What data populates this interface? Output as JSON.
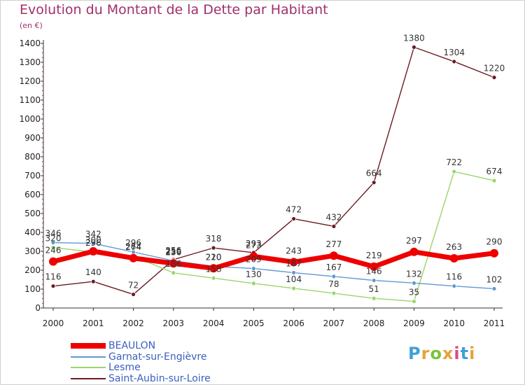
{
  "title": "Evolution du Montant de la Dette par Habitant",
  "unit_label": "(en €)",
  "logo": {
    "text": "Proxiti",
    "colors": [
      "#3fa0d8",
      "#e8a23a",
      "#7cc23c",
      "#e8a23a",
      "#d94a8a",
      "#3fa0d8",
      "#e8a23a"
    ]
  },
  "chart_data": {
    "type": "line",
    "x": [
      "2000",
      "2001",
      "2002",
      "2003",
      "2004",
      "2005",
      "2006",
      "2007",
      "2008",
      "2009",
      "2010",
      "2011"
    ],
    "ylim": [
      0,
      1400
    ],
    "yticks": [
      0,
      100,
      200,
      300,
      400,
      500,
      600,
      700,
      800,
      900,
      1000,
      1100,
      1200,
      1300,
      1400
    ],
    "grid": false,
    "legend_placement": "bottom-left",
    "series": [
      {
        "name": "Saint-Aubin-sur-Loire",
        "color": "#6b1a24",
        "values": [
          116,
          140,
          72,
          256,
          318,
          293,
          472,
          432,
          664,
          1380,
          1304,
          1220
        ]
      },
      {
        "name": "Lesme",
        "color": "#99d66a",
        "values": [
          320,
          296,
          274,
          186,
          158,
          130,
          104,
          78,
          51,
          35,
          722,
          674
        ]
      },
      {
        "name": "Garnat-sur-Engièvre",
        "color": "#5f9ad2",
        "values": [
          346,
          342,
          296,
          250,
          220,
          209,
          187,
          167,
          146,
          132,
          116,
          102
        ]
      },
      {
        "name": "BEAULON",
        "color": "#ee0000",
        "values": [
          246,
          300,
          264,
          236,
          210,
          273,
          243,
          277,
          219,
          297,
          263,
          290
        ]
      }
    ]
  },
  "legend": [
    {
      "name": "BEAULON",
      "color": "#ee0000"
    },
    {
      "name": "Garnat-sur-Engièvre",
      "color": "#5f9ad2"
    },
    {
      "name": "Lesme",
      "color": "#99d66a"
    },
    {
      "name": "Saint-Aubin-sur-Loire",
      "color": "#6b1a24"
    }
  ]
}
